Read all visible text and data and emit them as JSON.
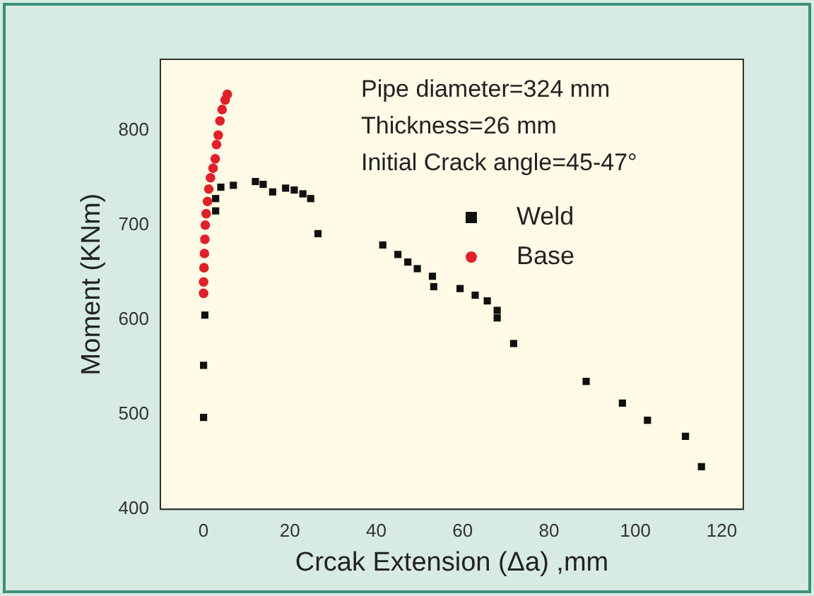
{
  "chart_data": {
    "type": "scatter",
    "xlabel": "Crcak Extension (Δa) ,mm",
    "ylabel": "Moment (KNm)",
    "annotations": [
      "Pipe diameter=324 mm",
      "Thickness=26 mm",
      "Initial Crack angle=45-47°"
    ],
    "xlim": [
      -10,
      125
    ],
    "xticks": [
      0,
      20,
      40,
      60,
      80,
      100,
      120
    ],
    "ylim": [
      400,
      875
    ],
    "yticks": [
      400,
      500,
      600,
      700,
      800
    ],
    "grid": false,
    "legend": "right",
    "series": [
      {
        "name": "Weld",
        "color": "#111111",
        "marker": "square",
        "x": [
          0,
          0,
          0.3,
          2.8,
          2.8,
          4,
          6.9,
          12,
          13.8,
          16,
          19,
          21,
          23,
          24.8,
          26.5,
          41.5,
          45,
          47.3,
          49.5,
          53,
          53.3,
          59.4,
          62.9,
          65.7,
          68,
          68,
          71.8,
          88.6,
          97,
          102.8,
          111.6,
          115.3
        ],
        "values": [
          497,
          552,
          605,
          715,
          728,
          740,
          742,
          746,
          743,
          735,
          739,
          737,
          733,
          728,
          691,
          679,
          669,
          661,
          654,
          646,
          635,
          633,
          626,
          620,
          610,
          602,
          575,
          535,
          512,
          494,
          477,
          445
        ]
      },
      {
        "name": "Base",
        "color": "#e0202a",
        "marker": "circle",
        "x": [
          0,
          0,
          0.1,
          0.2,
          0.3,
          0.4,
          0.6,
          0.9,
          1.2,
          1.6,
          2.2,
          2.7,
          3,
          3.4,
          3.8,
          4.3,
          5,
          5.5
        ],
        "values": [
          628,
          640,
          655,
          670,
          685,
          700,
          712,
          725,
          738,
          750,
          760,
          770,
          785,
          795,
          810,
          822,
          832,
          838
        ]
      }
    ]
  }
}
